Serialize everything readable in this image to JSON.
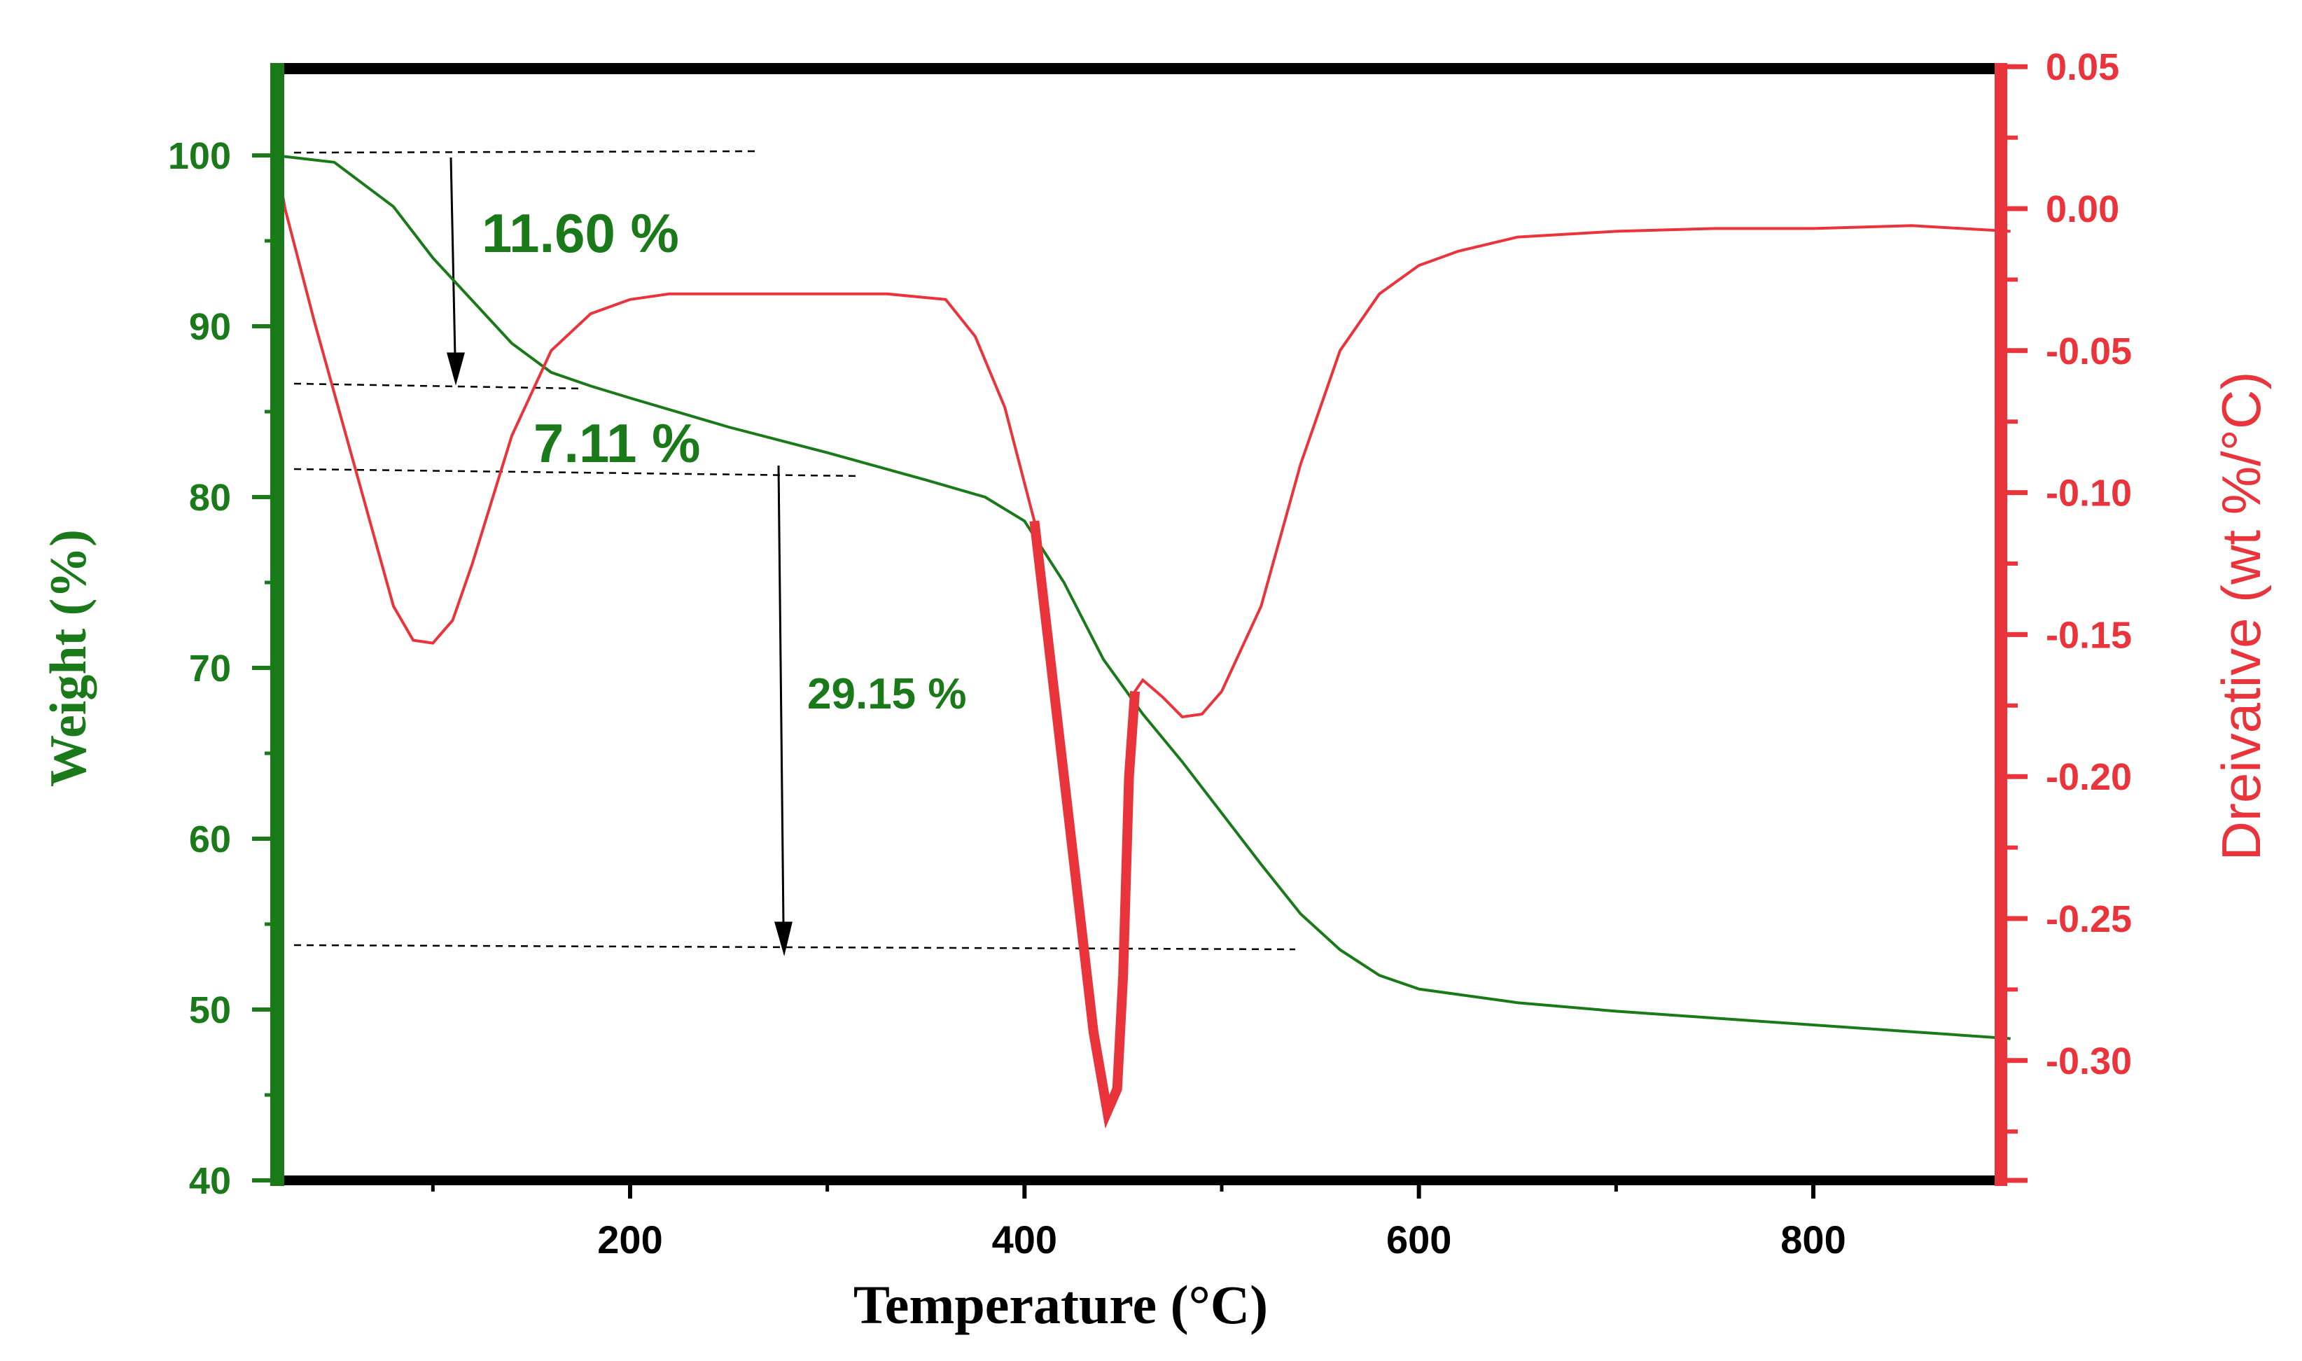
{
  "chart_data": {
    "type": "line",
    "title": "",
    "xlabel": "Temperature (°C)",
    "ylabel_left": "Weight (%)",
    "ylabel_right": "Dreivative (wt %/°C)",
    "xlim": [
      20,
      900
    ],
    "ylim_left": [
      40,
      105
    ],
    "ylim_right": [
      -0.34,
      0.05
    ],
    "x_ticks": [
      200,
      400,
      600,
      800
    ],
    "y_left_ticks": [
      40,
      50,
      60,
      70,
      80,
      90,
      100
    ],
    "y_right_ticks": [
      "0.05",
      "0.00",
      "-0.05",
      "-0.10",
      "-0.15",
      "-0.20",
      "-0.25",
      "-0.30"
    ],
    "colors": {
      "weight": "#1a7a1a",
      "derivative": "#e8343a",
      "frame": "#000000",
      "guide": "#000000"
    },
    "series": [
      {
        "name": "Weight",
        "axis": "left",
        "x": [
          20,
          50,
          80,
          100,
          120,
          140,
          160,
          180,
          200,
          250,
          300,
          350,
          380,
          400,
          420,
          440,
          460,
          480,
          500,
          520,
          540,
          560,
          580,
          600,
          650,
          700,
          750,
          800,
          850,
          900
        ],
        "values": [
          100,
          99.6,
          97,
          94,
          91.5,
          89,
          87.3,
          86.5,
          85.8,
          84.1,
          82.6,
          81.0,
          80.0,
          78.6,
          75.0,
          70.5,
          67.3,
          64.5,
          61.5,
          58.5,
          55.6,
          53.5,
          52.0,
          51.2,
          50.4,
          49.9,
          49.5,
          49.1,
          48.7,
          48.3
        ]
      },
      {
        "name": "Derivative",
        "axis": "right",
        "x": [
          20,
          25,
          40,
          60,
          80,
          90,
          100,
          110,
          120,
          140,
          160,
          180,
          200,
          220,
          250,
          290,
          330,
          360,
          375,
          390,
          405,
          415,
          425,
          435,
          442,
          447,
          450,
          453,
          456,
          460,
          470,
          480,
          490,
          500,
          520,
          540,
          560,
          580,
          600,
          620,
          650,
          700,
          750,
          800,
          850,
          900
        ],
        "values": [
          0.02,
          0.0,
          -0.04,
          -0.09,
          -0.14,
          -0.152,
          -0.153,
          -0.145,
          -0.125,
          -0.08,
          -0.05,
          -0.037,
          -0.032,
          -0.03,
          -0.03,
          -0.03,
          -0.03,
          -0.032,
          -0.045,
          -0.07,
          -0.11,
          -0.17,
          -0.23,
          -0.29,
          -0.318,
          -0.31,
          -0.27,
          -0.2,
          -0.17,
          -0.166,
          -0.172,
          -0.179,
          -0.178,
          -0.17,
          -0.14,
          -0.09,
          -0.05,
          -0.03,
          -0.02,
          -0.015,
          -0.01,
          -0.008,
          -0.007,
          -0.007,
          -0.006,
          -0.008
        ]
      }
    ],
    "annotations": [
      {
        "text": "11.60 %",
        "size": "large"
      },
      {
        "text": "7.11 %",
        "size": "large"
      },
      {
        "text": "29.15 %",
        "size": "small"
      }
    ]
  }
}
